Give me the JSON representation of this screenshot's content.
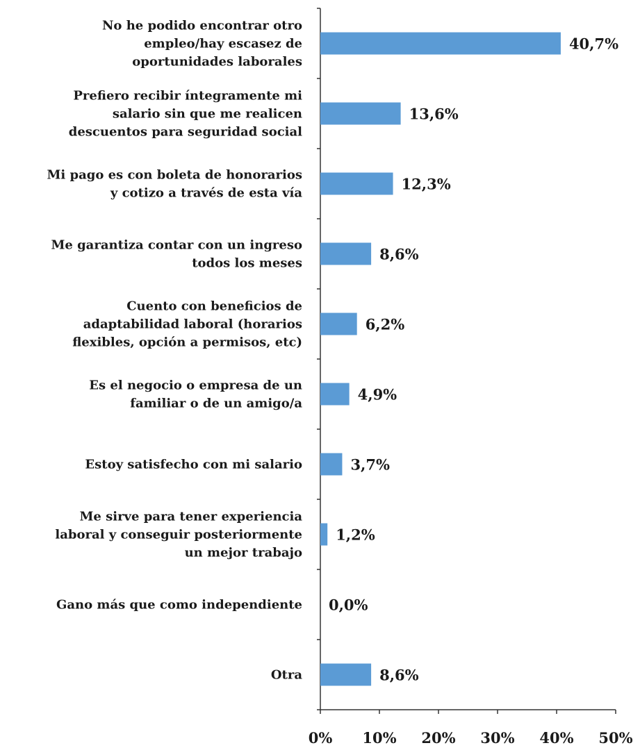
{
  "chart_data": {
    "type": "bar",
    "orientation": "horizontal",
    "categories": [
      [
        "No he podido encontrar otro",
        "empleo/hay escasez de",
        "oportunidades laborales"
      ],
      [
        "Prefiero recibir íntegramente mi",
        "salario sin que me realicen",
        "descuentos para seguridad social"
      ],
      [
        "Mi pago es con boleta de honorarios",
        "y cotizo a través de esta vía"
      ],
      [
        "Me garantiza contar con un ingreso",
        "todos los meses"
      ],
      [
        "Cuento con beneficios de",
        "adaptabilidad laboral (horarios",
        "flexibles, opción a permisos, etc)"
      ],
      [
        "Es el negocio o empresa de un",
        "familiar o de un amigo/a"
      ],
      [
        "Estoy satisfecho con mi salario"
      ],
      [
        "Me sirve para tener experiencia",
        "laboral y conseguir posteriormente",
        "un mejor trabajo"
      ],
      [
        "Gano más que como independiente"
      ],
      [
        "Otra"
      ]
    ],
    "values": [
      40.7,
      13.6,
      12.3,
      8.6,
      6.2,
      4.9,
      3.7,
      1.2,
      0.0,
      8.6
    ],
    "data_labels": [
      "40,7%",
      "13,6%",
      "12,3%",
      "8,6%",
      "6,2%",
      "4,9%",
      "3,7%",
      "1,2%",
      "0,0%",
      "8,6%"
    ],
    "xticks": [
      0,
      10,
      20,
      30,
      40,
      50
    ],
    "xtick_labels": [
      "0%",
      "10%",
      "20%",
      "30%",
      "40%",
      "50%"
    ],
    "xlim": [
      0,
      50
    ],
    "title": "",
    "xlabel": "",
    "ylabel": "",
    "grid": false,
    "legend": "none",
    "bar_color": "#5b9bd5"
  }
}
